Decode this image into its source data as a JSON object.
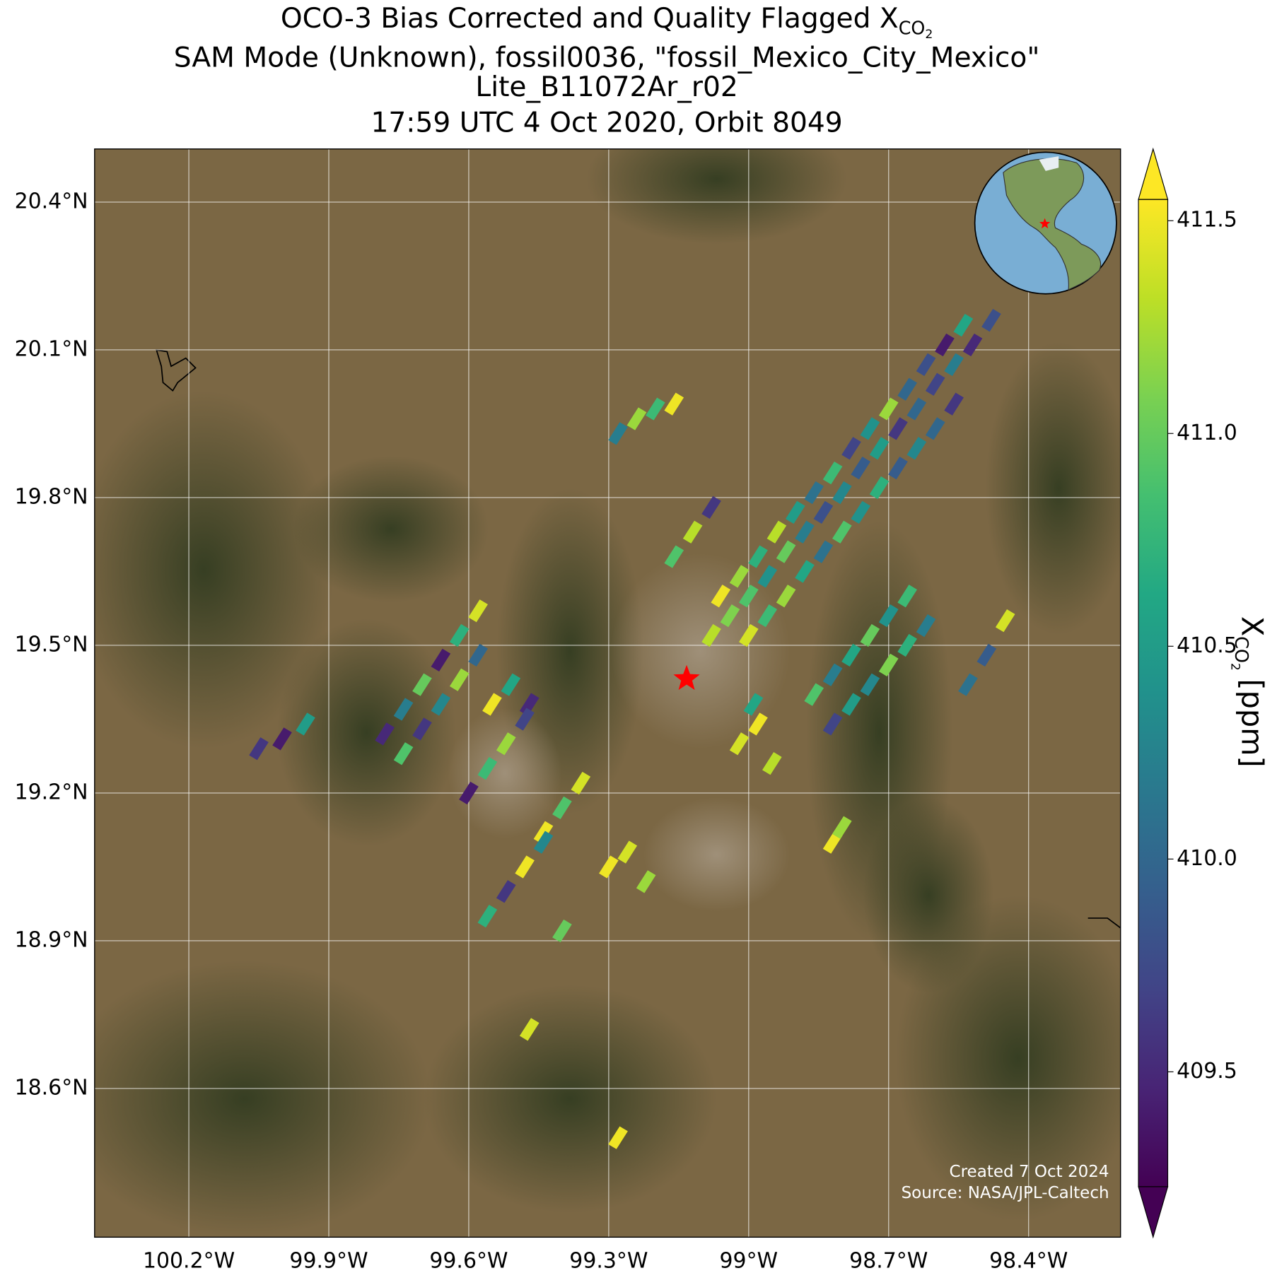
{
  "chart_data": {
    "type": "map",
    "title": [
      "OCO-3 Bias Corrected and Quality Flagged X",
      "SAM Mode (Unknown), fossil0036, \"fossil_Mexico_City_Mexico\"",
      "Lite_B11072Ar_r02",
      "17:59 UTC 4 Oct 2020, Orbit 8049"
    ],
    "title_subscript": [
      "CO",
      "2"
    ],
    "colorbar_label": [
      "X",
      "CO",
      "2",
      "[ppm]"
    ],
    "annotations": [
      "Created 7 Oct 2024",
      "Source: NASA/JPL-Caltech"
    ],
    "xlim": [
      -100.402,
      -98.203
    ],
    "ylim": [
      18.298,
      20.508
    ],
    "xticks": [
      {
        "value": -100.2,
        "label": "100.2°W"
      },
      {
        "value": -99.9,
        "label": "99.9°W"
      },
      {
        "value": -99.6,
        "label": "99.6°W"
      },
      {
        "value": -99.3,
        "label": "99.3°W"
      },
      {
        "value": -99.0,
        "label": "99°W"
      },
      {
        "value": -98.7,
        "label": "98.7°W"
      },
      {
        "value": -98.4,
        "label": "98.4°W"
      }
    ],
    "yticks": [
      {
        "value": 20.4,
        "label": "20.4°N"
      },
      {
        "value": 20.1,
        "label": "20.1°N"
      },
      {
        "value": 19.8,
        "label": "19.8°N"
      },
      {
        "value": 19.5,
        "label": "19.5°N"
      },
      {
        "value": 19.2,
        "label": "19.2°N"
      },
      {
        "value": 18.9,
        "label": "18.9°N"
      },
      {
        "value": 18.6,
        "label": "18.6°N"
      }
    ],
    "clim": [
      409.23,
      411.55
    ],
    "cticks": [
      409.5,
      {
        "value": 410,
        "label": "410.0"
      },
      410.5,
      {
        "value": 411,
        "label": "411.0"
      },
      411.5
    ],
    "colormap": "viridis",
    "grid": true,
    "target": {
      "lon": -99.133,
      "lat": 19.432,
      "color": "#ff0000"
    },
    "soundings": {
      "lon": [
        -99.08,
        -99.04,
        -99.0,
        -98.96,
        -98.92,
        -98.88,
        -98.84,
        -98.8,
        -98.76,
        -98.72,
        -98.68,
        -98.64,
        -98.6,
        -98.56,
        -98.52,
        -98.48,
        -99.0,
        -98.96,
        -98.92,
        -98.88,
        -98.84,
        -98.8,
        -98.76,
        -98.72,
        -98.68,
        -98.64,
        -98.6,
        -98.56,
        -99.06,
        -99.02,
        -98.98,
        -98.94,
        -98.9,
        -98.86,
        -98.82,
        -98.78,
        -98.74,
        -98.7,
        -98.66,
        -98.62,
        -98.58,
        -98.54,
        -98.86,
        -98.82,
        -98.78,
        -98.74,
        -98.7,
        -98.66,
        -98.82,
        -98.78,
        -98.74,
        -98.7,
        -98.66,
        -98.62,
        -99.02,
        -98.98,
        -98.95,
        -98.99,
        -99.78,
        -99.74,
        -99.7,
        -99.66,
        -99.62,
        -99.58,
        -99.74,
        -99.7,
        -99.66,
        -99.62,
        -99.58,
        -100.05,
        -100.0,
        -99.95,
        -99.55,
        -99.51,
        -99.47,
        -99.6,
        -99.56,
        -99.52,
        -99.48,
        -99.44,
        -99.4,
        -99.36,
        -99.56,
        -99.52,
        -99.48,
        -99.44,
        -99.4,
        -99.3,
        -99.26,
        -99.22,
        -99.28,
        -99.24,
        -99.2,
        -99.16,
        -99.16,
        -99.12,
        -99.08,
        -98.53,
        -98.49,
        -98.45,
        -98.82,
        -98.8,
        -99.47,
        -99.28
      ],
      "lat": [
        19.52,
        19.56,
        19.6,
        19.64,
        19.69,
        19.73,
        19.77,
        19.81,
        19.86,
        19.9,
        19.94,
        19.98,
        20.03,
        20.07,
        20.11,
        20.16,
        19.52,
        19.56,
        19.6,
        19.65,
        19.69,
        19.73,
        19.77,
        19.82,
        19.86,
        19.9,
        19.94,
        19.99,
        19.6,
        19.64,
        19.68,
        19.73,
        19.77,
        19.81,
        19.85,
        19.9,
        19.94,
        19.98,
        20.02,
        20.07,
        20.11,
        20.15,
        19.4,
        19.44,
        19.48,
        19.52,
        19.56,
        19.6,
        19.34,
        19.38,
        19.42,
        19.46,
        19.5,
        19.54,
        19.3,
        19.34,
        19.26,
        19.38,
        19.32,
        19.37,
        19.42,
        19.47,
        19.52,
        19.57,
        19.28,
        19.33,
        19.38,
        19.43,
        19.48,
        19.29,
        19.31,
        19.34,
        19.38,
        19.42,
        19.38,
        19.2,
        19.25,
        19.3,
        19.35,
        19.12,
        19.17,
        19.22,
        18.95,
        19.0,
        19.05,
        19.1,
        18.92,
        19.05,
        19.08,
        19.02,
        19.93,
        19.96,
        19.98,
        19.99,
        19.68,
        19.73,
        19.78,
        19.42,
        19.48,
        19.55,
        19.1,
        19.13,
        18.72,
        18.5
      ],
      "xco2": [
        411.3,
        411.1,
        410.9,
        410.4,
        411.0,
        410.2,
        409.8,
        410.3,
        409.9,
        410.5,
        409.6,
        410.0,
        409.7,
        410.2,
        409.5,
        409.8,
        411.4,
        410.8,
        411.2,
        410.6,
        410.1,
        410.9,
        410.4,
        410.7,
        409.9,
        410.3,
        410.0,
        409.6,
        411.5,
        411.2,
        410.7,
        411.3,
        410.5,
        410.1,
        410.8,
        409.7,
        410.4,
        411.2,
        410.0,
        409.8,
        409.4,
        410.6,
        410.9,
        410.2,
        410.6,
        411.0,
        410.4,
        410.8,
        409.7,
        410.5,
        410.3,
        411.1,
        410.7,
        410.2,
        411.4,
        411.5,
        411.3,
        410.6,
        409.5,
        410.2,
        411.0,
        409.4,
        410.7,
        411.4,
        410.9,
        409.6,
        410.3,
        411.2,
        410.0,
        409.6,
        409.4,
        410.5,
        411.5,
        410.6,
        409.5,
        409.4,
        410.8,
        411.2,
        409.7,
        411.5,
        410.9,
        411.4,
        410.7,
        409.6,
        411.5,
        410.3,
        411.0,
        411.5,
        411.4,
        411.2,
        410.2,
        411.2,
        410.8,
        411.5,
        410.9,
        411.3,
        409.6,
        410.1,
        409.9,
        411.4,
        411.5,
        411.2,
        411.4,
        411.5
      ]
    }
  }
}
